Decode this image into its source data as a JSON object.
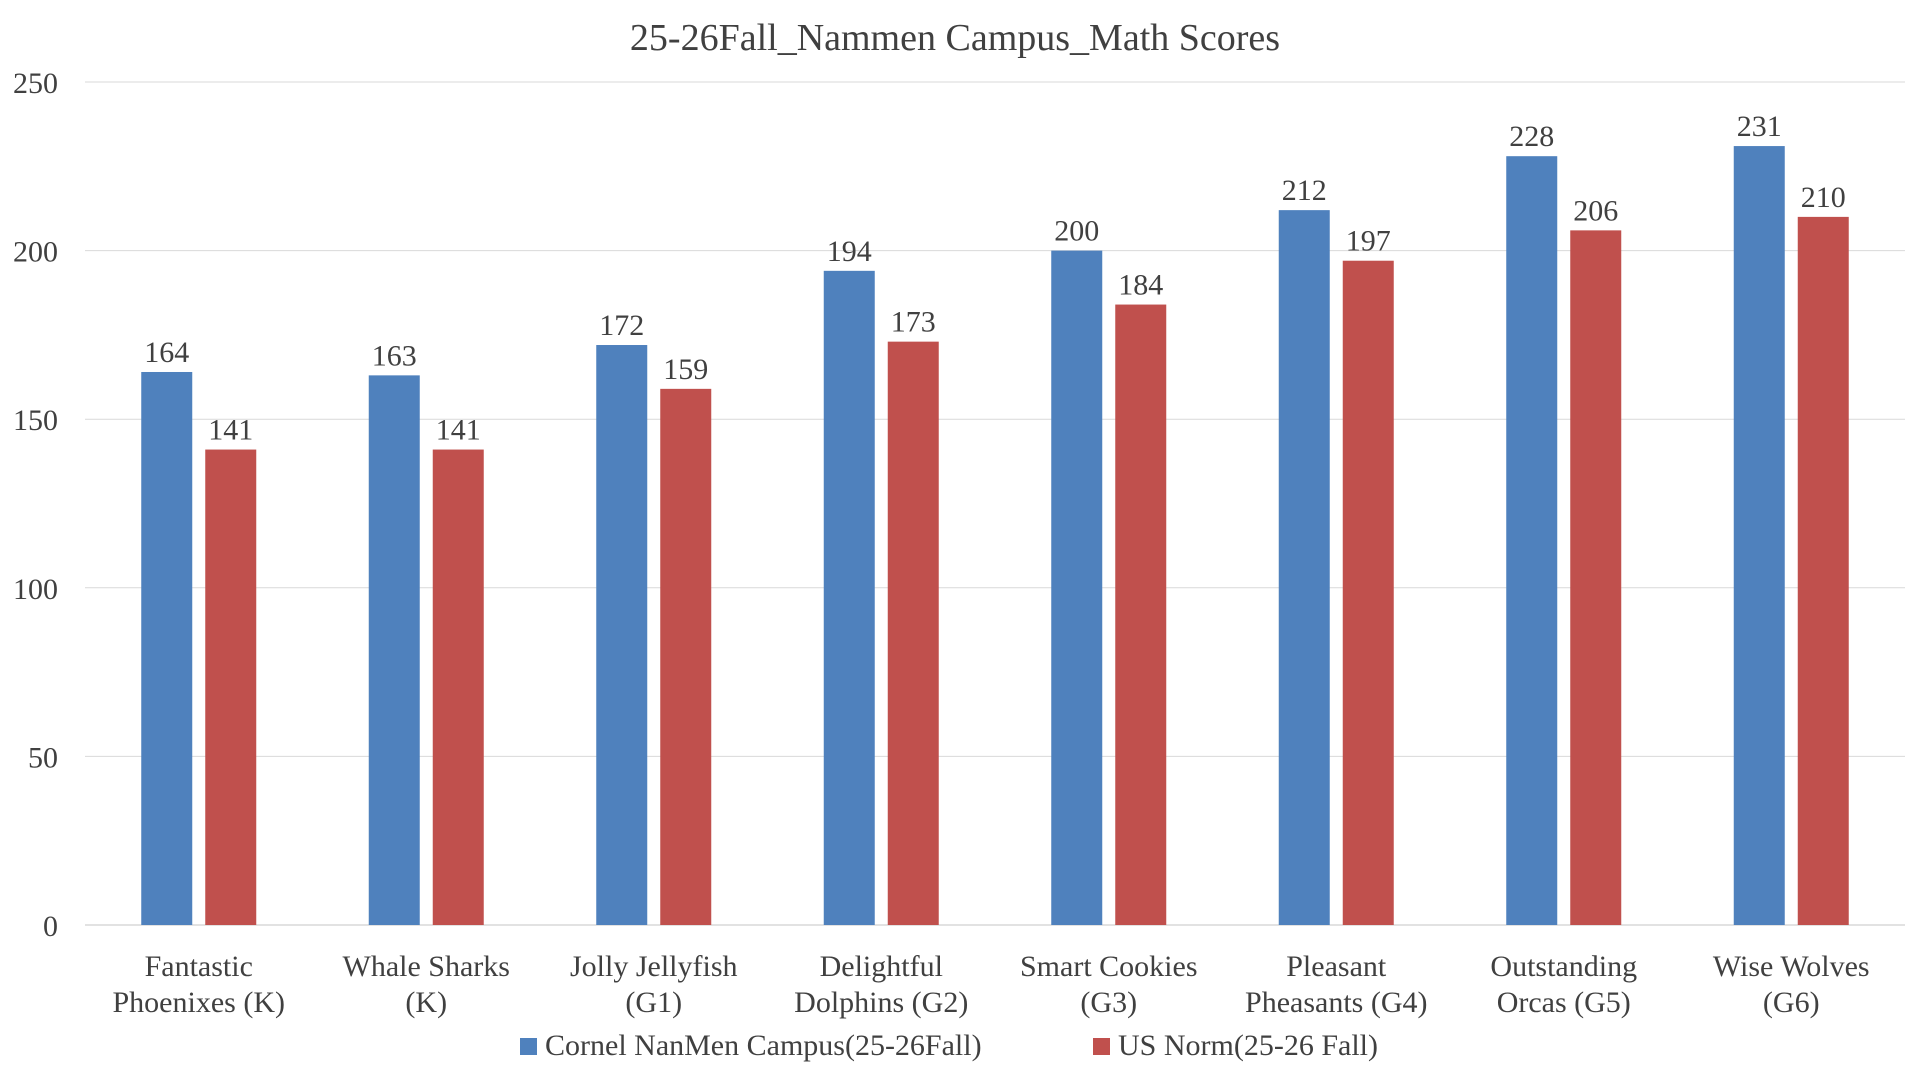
{
  "chart_data": {
    "type": "bar",
    "title": "25-26Fall_Nammen Campus_Math Scores",
    "xlabel": "",
    "ylabel": "",
    "ylim": [
      0,
      250
    ],
    "yticks": [
      0,
      50,
      100,
      150,
      200,
      250
    ],
    "grid": true,
    "legend_position": "bottom",
    "categories": [
      [
        "Fantastic",
        "Phoenixes (K)"
      ],
      [
        "Whale Sharks",
        "(K)"
      ],
      [
        "Jolly Jellyfish",
        "(G1)"
      ],
      [
        "Delightful",
        "Dolphins (G2)"
      ],
      [
        "Smart Cookies",
        "(G3)"
      ],
      [
        "Pleasant",
        "Pheasants (G4)"
      ],
      [
        "Outstanding",
        "Orcas (G5)"
      ],
      [
        "Wise Wolves",
        "(G6)"
      ]
    ],
    "series": [
      {
        "name": "Cornel NanMen Campus(25-26Fall)",
        "color": "#4f81bd",
        "values": [
          164,
          163,
          172,
          194,
          200,
          212,
          228,
          231
        ]
      },
      {
        "name": "US Norm(25-26 Fall)",
        "color": "#c0504d",
        "values": [
          141,
          141,
          159,
          173,
          184,
          197,
          206,
          210
        ]
      }
    ]
  }
}
